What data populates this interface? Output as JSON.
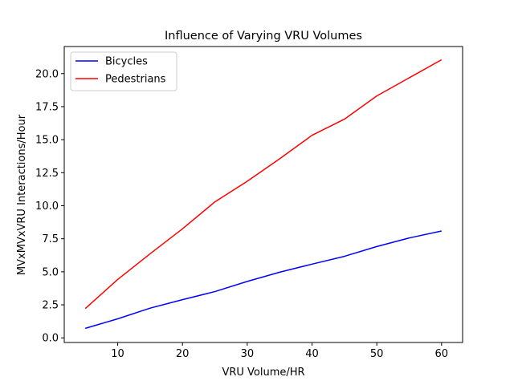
{
  "chart_data": {
    "type": "line",
    "title": "Influence of Varying VRU Volumes",
    "xlabel": "VRU Volume/HR",
    "ylabel": "MVxMVxVRU Interactions/Hour",
    "x": [
      5,
      10,
      15,
      20,
      25,
      30,
      35,
      40,
      45,
      50,
      55,
      60
    ],
    "xlim": [
      1.75,
      63.25
    ],
    "ylim": [
      -0.35,
      22.05
    ],
    "xticks": [
      10,
      20,
      30,
      40,
      50,
      60
    ],
    "xtick_labels": [
      "10",
      "20",
      "30",
      "40",
      "50",
      "60"
    ],
    "yticks": [
      0,
      2.5,
      5,
      7.5,
      10,
      12.5,
      15,
      17.5,
      20
    ],
    "ytick_labels": [
      "0.0",
      "2.5",
      "5.0",
      "7.5",
      "10.0",
      "12.5",
      "15.0",
      "17.5",
      "20.0"
    ],
    "grid": false,
    "legend_position": "top-left",
    "series": [
      {
        "name": "Bicycles",
        "color": "#0000ff",
        "values": [
          0.72,
          1.44,
          2.25,
          2.89,
          3.5,
          4.27,
          4.97,
          5.58,
          6.17,
          6.91,
          7.56,
          8.09
        ]
      },
      {
        "name": "Pedestrians",
        "color": "#ff0000",
        "values": [
          2.22,
          4.42,
          6.36,
          8.25,
          10.29,
          11.85,
          13.55,
          15.33,
          16.55,
          18.31,
          19.68,
          21.05
        ]
      }
    ]
  }
}
